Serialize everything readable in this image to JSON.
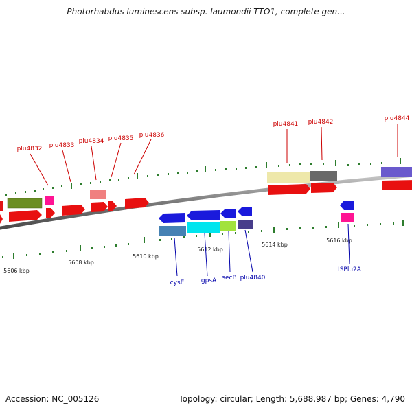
{
  "header": {
    "title": "Photorhabdus luminescens subsp. laumondii TTO1, complete gen..."
  },
  "footer": {
    "accession": "Accession: NC_005126",
    "summary": "Topology: circular; Length: 5,688,987 bp; Genes: 4,790"
  },
  "scale": {
    "labels": [
      "5606 kbp",
      "5608 kbp",
      "5610 kbp",
      "5612 kbp",
      "5614 kbp",
      "5616 kbp"
    ]
  },
  "genes": {
    "forward_labels": [
      "plu4832",
      "plu4833",
      "plu4834",
      "plu4835",
      "plu4836",
      "plu4841",
      "plu4842",
      "plu4844"
    ],
    "reverse_labels": [
      "cysE",
      "gpsA",
      "secB",
      "plu4840",
      "ISPlu2A"
    ]
  },
  "colors": {
    "forward_label": "#cc0000",
    "reverse_label": "#0000aa",
    "tick": "#2e7d2e",
    "backbone": "#888888",
    "cds_forward": "#e81010",
    "cds_reverse": "#1a1adc"
  }
}
